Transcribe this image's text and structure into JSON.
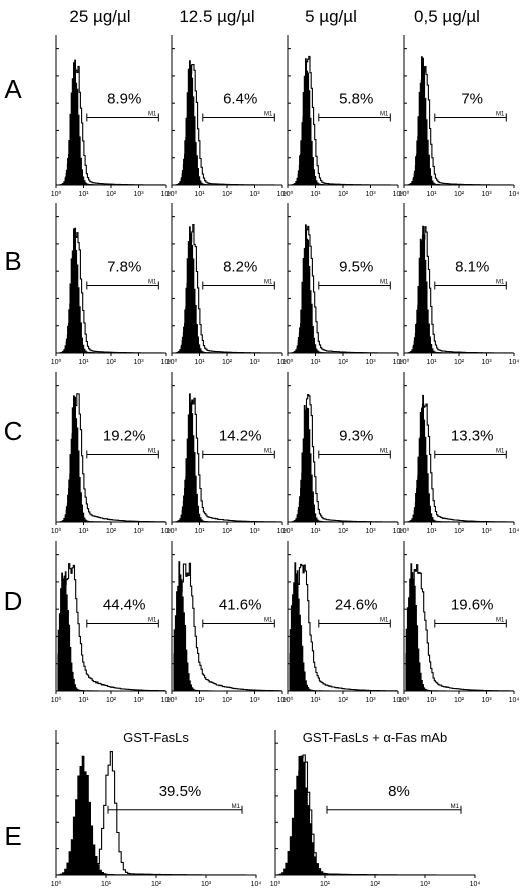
{
  "chart_data": {
    "type": "histogram-grid",
    "column_headers": [
      "25 µg/µl",
      "12.5 µg/µl",
      "5 µg/µl",
      "0,5 µg/µl"
    ],
    "row_labels": [
      "A",
      "B",
      "C",
      "D",
      "E"
    ],
    "gate_label": "M1",
    "x_scale": "log",
    "x_ticks": [
      "10⁰",
      "10¹",
      "10²",
      "10³",
      "10⁴"
    ],
    "rows": [
      {
        "label": "A",
        "panels": [
          {
            "percent": "8.9%",
            "spread": 0.07
          },
          {
            "percent": "6.4%",
            "spread": 0.05
          },
          {
            "percent": "5.8%",
            "spread": 0.05
          },
          {
            "percent": "7%",
            "spread": 0.06
          }
        ]
      },
      {
        "label": "B",
        "panels": [
          {
            "percent": "7.8%",
            "spread": 0.06
          },
          {
            "percent": "8.2%",
            "spread": 0.07
          },
          {
            "percent": "9.5%",
            "spread": 0.08
          },
          {
            "percent": "8.1%",
            "spread": 0.07
          }
        ]
      },
      {
        "label": "C",
        "panels": [
          {
            "percent": "19.2%",
            "spread": 0.2
          },
          {
            "percent": "14.2%",
            "spread": 0.15
          },
          {
            "percent": "9.3%",
            "spread": 0.09
          },
          {
            "percent": "13.3%",
            "spread": 0.14
          }
        ]
      },
      {
        "label": "D",
        "panels": [
          {
            "percent": "44.4%",
            "spread": 0.5
          },
          {
            "percent": "41.6%",
            "spread": 0.47
          },
          {
            "percent": "24.6%",
            "spread": 0.3
          },
          {
            "percent": "19.6%",
            "spread": 0.25
          }
        ]
      },
      {
        "label": "E",
        "panels": [
          {
            "title": "GST-FasLs",
            "percent": "39.5%",
            "shifted_peak": true
          },
          {
            "title": "GST-FasLs + α-Fas mAb",
            "percent": "8%",
            "shifted_peak": false
          }
        ]
      }
    ]
  }
}
